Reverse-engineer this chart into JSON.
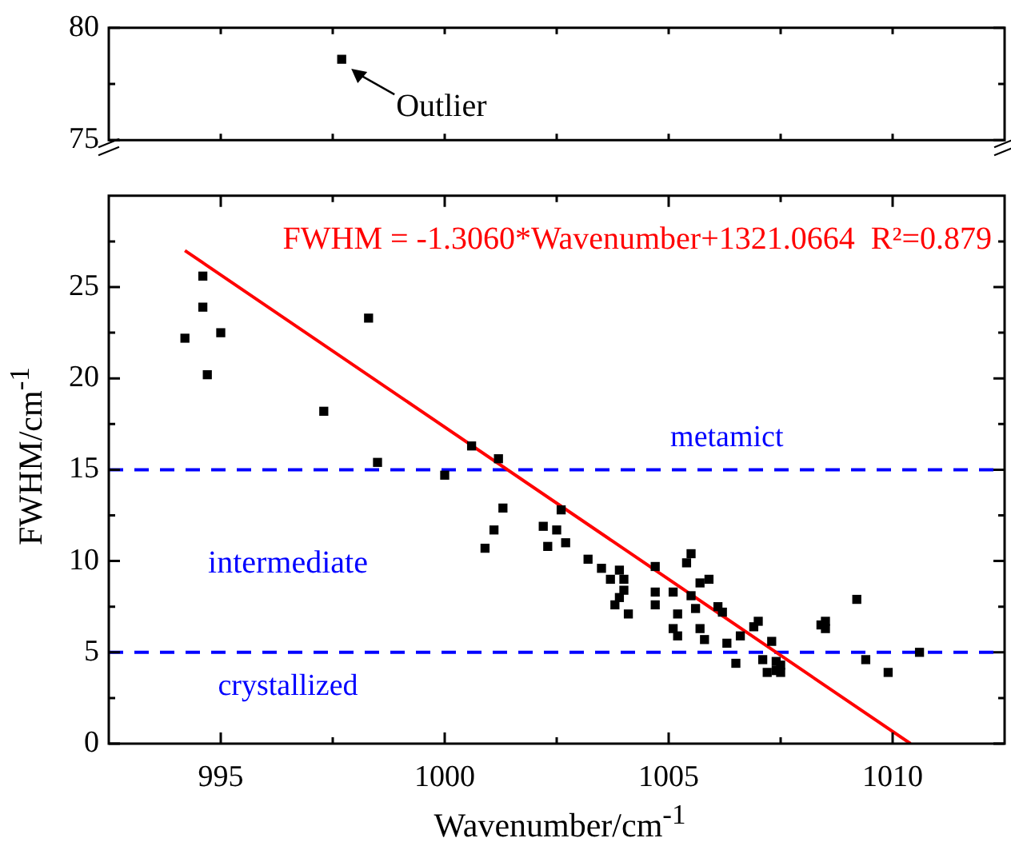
{
  "chart_data": [
    {
      "type": "scatter",
      "xlim": [
        992.5,
        1012.5
      ],
      "xticks": [
        {
          "value": 995,
          "label": null
        },
        {
          "value": 997.5,
          "label": null
        },
        {
          "value": 1000,
          "label": null
        },
        {
          "value": 1002.5,
          "label": null
        },
        {
          "value": 1005,
          "label": null
        },
        {
          "value": 1007.5,
          "label": null
        },
        {
          "value": 1010,
          "label": null
        }
      ],
      "ylim": [
        75,
        80
      ],
      "yticks": [
        75,
        {
          "value": 77.5,
          "label": null
        },
        80
      ],
      "tick_labels": "y",
      "marker": "square",
      "series": [
        {
          "color": "#000000",
          "x": [
            997.7
          ],
          "values": [
            78.6
          ]
        }
      ],
      "annotations": [
        {
          "text": "Outlier",
          "x": 997.7,
          "y": 78.6
        }
      ]
    },
    {
      "type": "scatter",
      "xlabel": "Wavenumber/cm$^{-1}$",
      "ylabel": "FWHM/cm$^{-1}$",
      "xlim": [
        992.5,
        1012.5
      ],
      "xticks": [
        995,
        {
          "value": 997.5,
          "label": null
        },
        1000,
        {
          "value": 1002.5,
          "label": null
        },
        1005,
        {
          "value": 1007.5,
          "label": null
        },
        1010
      ],
      "ylim": [
        0,
        30
      ],
      "yticks": [
        0,
        {
          "value": 2.5,
          "label": null
        },
        5,
        {
          "value": 7.5,
          "label": null
        },
        10,
        {
          "value": 12.5,
          "label": null
        },
        15,
        {
          "value": 17.5,
          "label": null
        },
        20,
        {
          "value": 22.5,
          "label": null
        },
        25,
        {
          "value": 27.5,
          "label": null
        }
      ],
      "series": [
        {
          "marker": "square",
          "color": "#000000",
          "x": [
            994.2,
            994.6,
            994.6,
            995.0,
            994.7,
            998.3,
            997.3,
            998.5,
            1000.0,
            1000.6,
            1001.2,
            1001.3,
            1001.1,
            1000.9,
            1002.2,
            1002.5,
            1002.3,
            1002.6,
            1002.7,
            1003.2,
            1003.5,
            1003.9,
            1003.7,
            1004.0,
            1004.0,
            1003.9,
            1003.8,
            1004.1,
            1004.7,
            1004.7,
            1004.7,
            1005.1,
            1005.2,
            1005.1,
            1005.2,
            1005.4,
            1005.5,
            1005.5,
            1005.6,
            1005.7,
            1005.9,
            1005.7,
            1005.8,
            1006.1,
            1006.2,
            1006.3,
            1006.6,
            1006.5,
            1006.9,
            1007.0,
            1007.3,
            1007.1,
            1007.2,
            1007.4,
            1007.5,
            1007.4,
            1007.5,
            1008.4,
            1008.5,
            1008.5,
            1009.2,
            1009.4,
            1009.9,
            1010.6
          ],
          "values": [
            22.2,
            25.6,
            23.9,
            22.5,
            20.2,
            23.3,
            18.2,
            15.4,
            14.7,
            16.3,
            15.6,
            12.9,
            11.7,
            10.7,
            11.9,
            11.7,
            10.8,
            12.8,
            11.0,
            10.1,
            9.6,
            9.5,
            9.0,
            9.0,
            8.4,
            8.0,
            7.6,
            7.1,
            9.7,
            8.3,
            7.6,
            8.3,
            7.1,
            6.3,
            5.9,
            9.9,
            10.4,
            8.1,
            7.4,
            8.8,
            9.0,
            6.3,
            5.7,
            7.5,
            7.2,
            5.5,
            5.9,
            4.4,
            6.4,
            6.7,
            5.6,
            4.6,
            3.9,
            4.0,
            3.9,
            4.5,
            4.3,
            6.5,
            6.7,
            6.3,
            7.9,
            4.6,
            3.9,
            5.0
          ]
        },
        {
          "type": "line",
          "color": "#ff0000",
          "x": [
            994.2,
            1010.4
          ],
          "values": [
            27.0,
            0
          ]
        }
      ],
      "ref_lines": [
        {
          "axis": "y",
          "value": 15,
          "label": "metamict",
          "color": "#0000ff",
          "line_style": "dashed"
        },
        {
          "axis": "y",
          "value": 5,
          "label": "crystallized",
          "color": "#0000ff",
          "line_style": "dashed"
        }
      ],
      "annotations": [
        "FWHM = -1.3060*Wavenumber+1321.0664  R²=0.879",
        "intermediate"
      ]
    }
  ]
}
